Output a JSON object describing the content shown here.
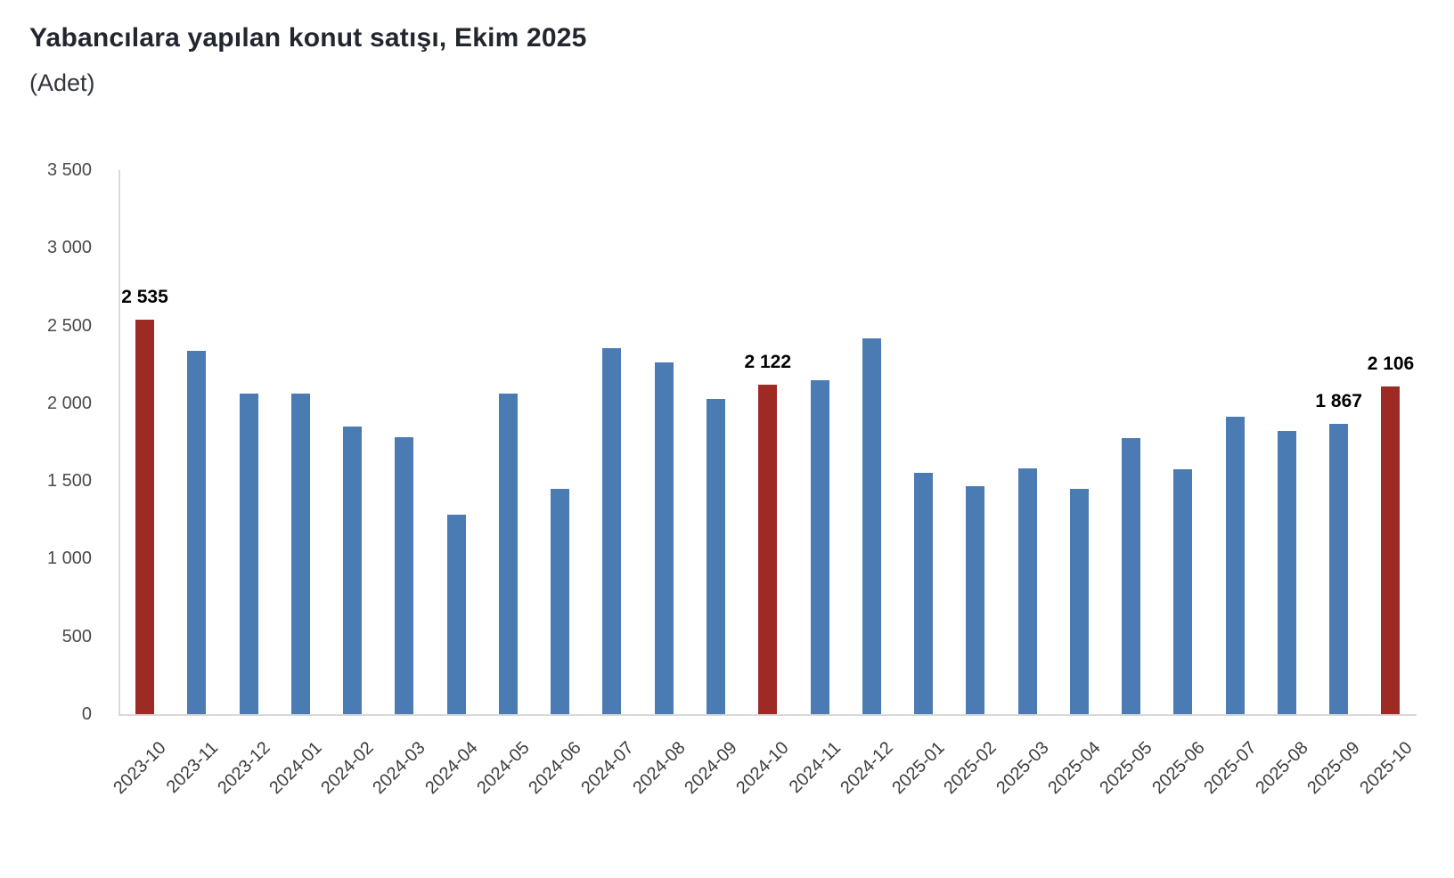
{
  "header": {
    "title": "Yabancılara yapılan konut satışı, Ekim 2025",
    "subtitle": "(Adet)"
  },
  "chart_data": {
    "type": "bar",
    "title": "Yabancılara yapılan konut satışı, Ekim 2025",
    "unit": "(Adet)",
    "xlabel": "",
    "ylabel": "Adet",
    "categories": [
      "2023-10",
      "2023-11",
      "2023-12",
      "2024-01",
      "2024-02",
      "2024-03",
      "2024-04",
      "2024-05",
      "2024-06",
      "2024-07",
      "2024-08",
      "2024-09",
      "2024-10",
      "2024-11",
      "2024-12",
      "2025-01",
      "2025-02",
      "2025-03",
      "2025-04",
      "2025-05",
      "2025-06",
      "2025-07",
      "2025-08",
      "2025-09",
      "2025-10"
    ],
    "values": [
      2535,
      2340,
      2065,
      2065,
      1850,
      1780,
      1285,
      2065,
      1450,
      2355,
      2260,
      2025,
      2122,
      2150,
      2420,
      1555,
      1465,
      1580,
      1450,
      1775,
      1575,
      1915,
      1820,
      1867,
      2106
    ],
    "highlight_indices": [
      0,
      12,
      24
    ],
    "data_labels": {
      "0": "2 535",
      "12": "2 122",
      "23": "1 867",
      "24": "2 106"
    },
    "ylim": [
      0,
      3500
    ],
    "ytick_step": 500,
    "ytick_labels": [
      "0",
      "500",
      "1 000",
      "1 500",
      "2 000",
      "2 500",
      "3 000",
      "3 500"
    ],
    "grid": false,
    "legend": false,
    "colors": {
      "bar": "#4a7bb3",
      "highlight": "#9e2a25",
      "axis_line": "#d9d9d9",
      "ytick_text": "#4a4a4a",
      "xtick_text": "#3d3d3d",
      "data_label_text": "#000000"
    }
  }
}
